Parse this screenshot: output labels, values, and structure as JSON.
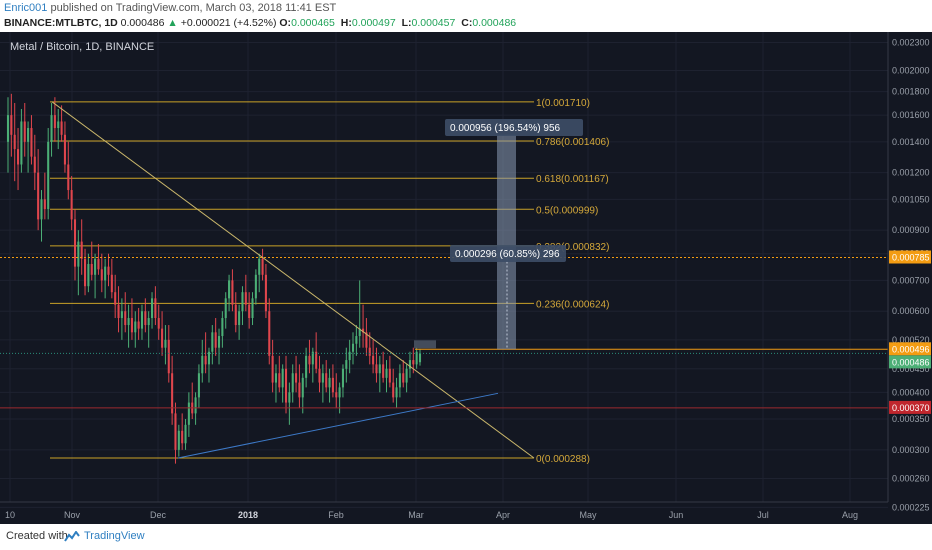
{
  "header": {
    "author": "Enric001",
    "published": "published on TradingView.com, March 03, 2018 11:41 EST",
    "symbol_line": "BINANCE:MTLBTC, 1D",
    "last": "0.000486",
    "change_arrow": "▲",
    "change": "+0.000021 (+4.52%)",
    "ohlc": [
      {
        "label": "O:",
        "value": "0.000465"
      },
      {
        "label": "H:",
        "value": "0.000497"
      },
      {
        "label": "L:",
        "value": "0.000457"
      },
      {
        "label": "C:",
        "value": "0.000486"
      }
    ]
  },
  "footer": {
    "created": "Created with",
    "brand": "TradingView"
  },
  "chart_data": {
    "type": "candlestick",
    "title": "Metal / Bitcoin, 1D, BINANCE",
    "background": "#131722",
    "up_color": "#4caf76",
    "down_color": "#e0464d",
    "y_ticks": [
      "0.002300",
      "0.002000",
      "0.001800",
      "0.001600",
      "0.001400",
      "0.001200",
      "0.001050",
      "0.000900",
      "0.000800",
      "0.000700",
      "0.000600",
      "0.000520",
      "0.000450",
      "0.000400",
      "0.000350",
      "0.000300",
      "0.000260",
      "0.000225"
    ],
    "x_ticks": [
      "10",
      "Nov",
      "Dec",
      "2018",
      "Feb",
      "Mar",
      "Apr",
      "May",
      "Jun",
      "Jul",
      "Aug"
    ],
    "fib_levels": [
      {
        "ratio": "1",
        "price": "0.001710"
      },
      {
        "ratio": "0.786",
        "price": "0.001406"
      },
      {
        "ratio": "0.618",
        "price": "0.001167"
      },
      {
        "ratio": "0.5",
        "price": "0.000999"
      },
      {
        "ratio": "0.382",
        "price": "0.000832"
      },
      {
        "ratio": "0.236",
        "price": "0.000624"
      },
      {
        "ratio": "0",
        "price": "0.000288"
      }
    ],
    "price_labels": [
      {
        "value": "0.000785",
        "color": "#f39c12"
      },
      {
        "value": "0.000496",
        "color": "#f39c12"
      },
      {
        "value": "0.000486",
        "color": "#4caf76"
      },
      {
        "value": "0.000370",
        "color": "#c0262d"
      }
    ],
    "measure_labels": [
      {
        "text": "0.000956 (196.54%) 956"
      },
      {
        "text": "0.000296 (60.85%) 296"
      }
    ],
    "candles": [
      [
        0.0014,
        0.00175,
        0.0012,
        0.0016
      ],
      [
        0.0016,
        0.00178,
        0.0013,
        0.00145
      ],
      [
        0.00145,
        0.0017,
        0.00115,
        0.00135
      ],
      [
        0.00135,
        0.0015,
        0.0011,
        0.00125
      ],
      [
        0.00125,
        0.00165,
        0.0012,
        0.00155
      ],
      [
        0.00155,
        0.0017,
        0.0013,
        0.0014
      ],
      [
        0.0014,
        0.00155,
        0.0012,
        0.0015
      ],
      [
        0.0015,
        0.0016,
        0.00125,
        0.0013
      ],
      [
        0.0013,
        0.00145,
        0.0011,
        0.0012
      ],
      [
        0.0012,
        0.00135,
        0.0009,
        0.00095
      ],
      [
        0.00095,
        0.0011,
        0.00085,
        0.00105
      ],
      [
        0.00105,
        0.0012,
        0.00095,
        0.001
      ],
      [
        0.001,
        0.0015,
        0.00095,
        0.0014
      ],
      [
        0.0014,
        0.0017,
        0.0013,
        0.0016
      ],
      [
        0.0016,
        0.00175,
        0.0014,
        0.0015
      ],
      [
        0.0015,
        0.00165,
        0.00135,
        0.00155
      ],
      [
        0.00155,
        0.00168,
        0.0014,
        0.00145
      ],
      [
        0.00145,
        0.00155,
        0.0012,
        0.00125
      ],
      [
        0.00125,
        0.0014,
        0.00105,
        0.0011
      ],
      [
        0.0011,
        0.00118,
        0.0009,
        0.00095
      ],
      [
        0.00095,
        0.001,
        0.0007,
        0.00075
      ],
      [
        0.00075,
        0.0009,
        0.00065,
        0.00085
      ],
      [
        0.00085,
        0.00095,
        0.00072,
        0.00078
      ],
      [
        0.00078,
        0.00082,
        0.00065,
        0.00068
      ],
      [
        0.00068,
        0.0008,
        0.00066,
        0.00076
      ],
      [
        0.00076,
        0.00085,
        0.0007,
        0.00072
      ],
      [
        0.00072,
        0.0008,
        0.00064,
        0.00078
      ],
      [
        0.00078,
        0.00084,
        0.00072,
        0.00074
      ],
      [
        0.00074,
        0.0008,
        0.00066,
        0.0007
      ],
      [
        0.0007,
        0.00078,
        0.00064,
        0.00075
      ],
      [
        0.00075,
        0.0008,
        0.00068,
        0.00072
      ],
      [
        0.00072,
        0.00078,
        0.00064,
        0.00066
      ],
      [
        0.00066,
        0.00072,
        0.00058,
        0.00062
      ],
      [
        0.00062,
        0.00068,
        0.00054,
        0.00058
      ],
      [
        0.00058,
        0.00064,
        0.00052,
        0.0006
      ],
      [
        0.0006,
        0.00066,
        0.00054,
        0.00056
      ],
      [
        0.00056,
        0.00062,
        0.0005,
        0.00058
      ],
      [
        0.00058,
        0.00064,
        0.00052,
        0.00054
      ],
      [
        0.00054,
        0.0006,
        0.0005,
        0.00057
      ],
      [
        0.00057,
        0.00061,
        0.00052,
        0.00055
      ],
      [
        0.00055,
        0.00062,
        0.00052,
        0.0006
      ],
      [
        0.0006,
        0.00064,
        0.00054,
        0.00056
      ],
      [
        0.00056,
        0.0006,
        0.0005,
        0.00058
      ],
      [
        0.00058,
        0.00066,
        0.00055,
        0.00064
      ],
      [
        0.00064,
        0.00068,
        0.00056,
        0.00058
      ],
      [
        0.00058,
        0.00062,
        0.00052,
        0.00055
      ],
      [
        0.00055,
        0.0006,
        0.00048,
        0.0005
      ],
      [
        0.0005,
        0.00056,
        0.00046,
        0.00052
      ],
      [
        0.00052,
        0.00056,
        0.00042,
        0.00044
      ],
      [
        0.00044,
        0.00048,
        0.00034,
        0.00036
      ],
      [
        0.00036,
        0.00038,
        0.00028,
        0.0003
      ],
      [
        0.0003,
        0.00034,
        0.00029,
        0.00033
      ],
      [
        0.00033,
        0.00036,
        0.0003,
        0.00031
      ],
      [
        0.00031,
        0.00035,
        0.0003,
        0.00034
      ],
      [
        0.00034,
        0.0004,
        0.00032,
        0.00038
      ],
      [
        0.00038,
        0.00042,
        0.00035,
        0.00036
      ],
      [
        0.00036,
        0.0004,
        0.00034,
        0.00039
      ],
      [
        0.00039,
        0.00046,
        0.00037,
        0.00044
      ],
      [
        0.00044,
        0.00052,
        0.00042,
        0.00048
      ],
      [
        0.00048,
        0.00054,
        0.00044,
        0.00046
      ],
      [
        0.00046,
        0.0005,
        0.00042,
        0.00049
      ],
      [
        0.00049,
        0.00056,
        0.00046,
        0.00054
      ],
      [
        0.00054,
        0.00058,
        0.00048,
        0.0005
      ],
      [
        0.0005,
        0.00055,
        0.00046,
        0.00053
      ],
      [
        0.00053,
        0.0006,
        0.0005,
        0.00058
      ],
      [
        0.00058,
        0.00066,
        0.00055,
        0.00064
      ],
      [
        0.00064,
        0.00072,
        0.0006,
        0.0007
      ],
      [
        0.0007,
        0.00074,
        0.0006,
        0.00062
      ],
      [
        0.00062,
        0.00066,
        0.00054,
        0.00056
      ],
      [
        0.00056,
        0.00062,
        0.00052,
        0.0006
      ],
      [
        0.0006,
        0.00068,
        0.00056,
        0.00066
      ],
      [
        0.00066,
        0.00072,
        0.0006,
        0.00062
      ],
      [
        0.00062,
        0.00066,
        0.00055,
        0.00058
      ],
      [
        0.00058,
        0.00066,
        0.00056,
        0.00064
      ],
      [
        0.00064,
        0.00074,
        0.00062,
        0.00072
      ],
      [
        0.00072,
        0.0008,
        0.00066,
        0.00078
      ],
      [
        0.00078,
        0.00082,
        0.0007,
        0.00072
      ],
      [
        0.00072,
        0.00076,
        0.00058,
        0.0006
      ],
      [
        0.0006,
        0.00064,
        0.00046,
        0.00048
      ],
      [
        0.00048,
        0.00052,
        0.0004,
        0.00042
      ],
      [
        0.00042,
        0.00046,
        0.00038,
        0.00044
      ],
      [
        0.00044,
        0.00048,
        0.0004,
        0.00041
      ],
      [
        0.00041,
        0.00046,
        0.00038,
        0.00045
      ],
      [
        0.00045,
        0.00048,
        0.00036,
        0.00038
      ],
      [
        0.00038,
        0.00042,
        0.00034,
        0.0004
      ],
      [
        0.0004,
        0.00046,
        0.00038,
        0.00044
      ],
      [
        0.00044,
        0.00048,
        0.0004,
        0.00042
      ],
      [
        0.00042,
        0.00046,
        0.00037,
        0.00039
      ],
      [
        0.00039,
        0.00044,
        0.00036,
        0.00043
      ],
      [
        0.00043,
        0.0005,
        0.00041,
        0.00048
      ],
      [
        0.00048,
        0.00052,
        0.00044,
        0.00046
      ],
      [
        0.00046,
        0.0005,
        0.00042,
        0.00049
      ],
      [
        0.00049,
        0.00054,
        0.00044,
        0.00045
      ],
      [
        0.00045,
        0.00048,
        0.0004,
        0.00042
      ],
      [
        0.00042,
        0.00046,
        0.00038,
        0.00044
      ],
      [
        0.00044,
        0.00047,
        0.0004,
        0.00041
      ],
      [
        0.00041,
        0.00045,
        0.00038,
        0.00043
      ],
      [
        0.00043,
        0.00046,
        0.00039,
        0.0004
      ],
      [
        0.0004,
        0.00044,
        0.00037,
        0.00039
      ],
      [
        0.00039,
        0.00042,
        0.00036,
        0.00041
      ],
      [
        0.00041,
        0.00046,
        0.00039,
        0.00045
      ],
      [
        0.00045,
        0.0005,
        0.00042,
        0.00047
      ],
      [
        0.00047,
        0.00052,
        0.00044,
        0.00049
      ],
      [
        0.00049,
        0.00054,
        0.00046,
        0.00051
      ],
      [
        0.00051,
        0.00056,
        0.00048,
        0.00053
      ],
      [
        0.00053,
        0.0007,
        0.0005,
        0.00055
      ],
      [
        0.00055,
        0.00062,
        0.0005,
        0.00054
      ],
      [
        0.00054,
        0.00058,
        0.00048,
        0.0005
      ],
      [
        0.0005,
        0.00054,
        0.00046,
        0.00048
      ],
      [
        0.00048,
        0.00052,
        0.00044,
        0.00046
      ],
      [
        0.00046,
        0.0005,
        0.00042,
        0.00044
      ],
      [
        0.00044,
        0.00048,
        0.0004,
        0.00046
      ],
      [
        0.00046,
        0.00049,
        0.00042,
        0.00043
      ],
      [
        0.00043,
        0.00047,
        0.0004,
        0.00045
      ],
      [
        0.00045,
        0.00048,
        0.00041,
        0.00042
      ],
      [
        0.00042,
        0.00045,
        0.00038,
        0.00039
      ],
      [
        0.00039,
        0.00043,
        0.00037,
        0.00041
      ],
      [
        0.00041,
        0.00046,
        0.00039,
        0.00044
      ],
      [
        0.00044,
        0.00047,
        0.00041,
        0.00042
      ],
      [
        0.00042,
        0.00046,
        0.0004,
        0.00045
      ],
      [
        0.00045,
        0.00049,
        0.00043,
        0.00047
      ],
      [
        0.00047,
        0.0005,
        0.00044,
        0.00046
      ],
      [
        0.00046,
        0.0005,
        0.00045,
        0.00049
      ],
      [
        0.000465,
        0.000497,
        0.000457,
        0.000486
      ]
    ]
  }
}
